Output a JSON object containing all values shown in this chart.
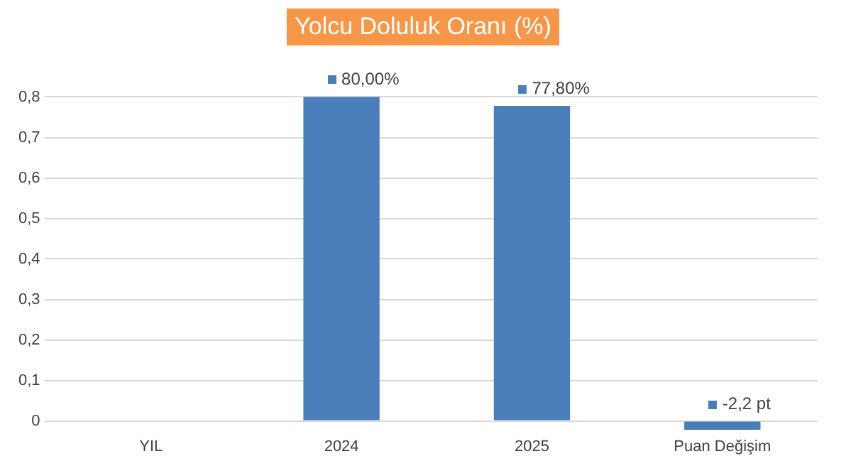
{
  "chart_data": {
    "type": "bar",
    "title": "Yolcu Doluluk Oranı (%)",
    "categories": [
      "YIL",
      "2024",
      "2025",
      "Puan Değişim"
    ],
    "values": [
      null,
      0.8,
      0.778,
      -0.022
    ],
    "color": "#4a7ebb",
    "value_labels": [
      null,
      "80,00%",
      "77,80%",
      null
    ],
    "annotations": [
      {
        "text": "-2,2 pt",
        "x": "Puan Değişim",
        "y": -0.022
      }
    ],
    "ylim": [
      -0.03,
      0.85
    ],
    "yticks": [
      {
        "value": 0,
        "label": "0"
      },
      {
        "value": 0.1,
        "label": "0,1"
      },
      {
        "value": 0.2,
        "label": "0,2"
      },
      {
        "value": 0.3,
        "label": "0,3"
      },
      {
        "value": 0.4,
        "label": "0,4"
      },
      {
        "value": 0.5,
        "label": "0,5"
      },
      {
        "value": 0.6,
        "label": "0,6"
      },
      {
        "value": 0.7,
        "label": "0,7"
      },
      {
        "value": 0.8,
        "label": "0,8"
      }
    ],
    "grid": "y",
    "legend": false
  }
}
